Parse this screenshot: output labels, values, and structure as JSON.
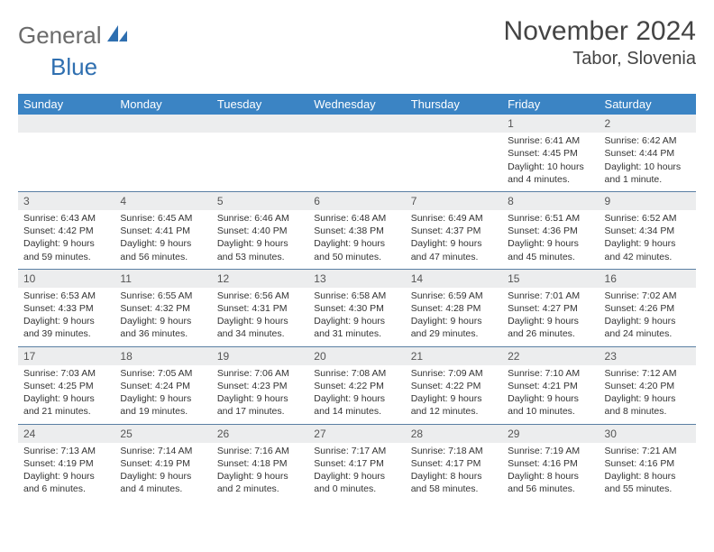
{
  "logo": {
    "part1": "General",
    "part2": "Blue"
  },
  "title": "November 2024",
  "location": "Tabor, Slovenia",
  "day_headers": [
    "Sunday",
    "Monday",
    "Tuesday",
    "Wednesday",
    "Thursday",
    "Friday",
    "Saturday"
  ],
  "colors": {
    "header_bg": "#3b84c4",
    "header_fg": "#ffffff",
    "daynum_bg": "#ecedee",
    "rule": "#5a7fa3",
    "logo_gray": "#6b6b6b",
    "logo_blue": "#2f6fb0"
  },
  "weeks": [
    [
      null,
      null,
      null,
      null,
      null,
      {
        "n": "1",
        "sunrise": "6:41 AM",
        "sunset": "4:45 PM",
        "daylight": "10 hours and 4 minutes."
      },
      {
        "n": "2",
        "sunrise": "6:42 AM",
        "sunset": "4:44 PM",
        "daylight": "10 hours and 1 minute."
      }
    ],
    [
      {
        "n": "3",
        "sunrise": "6:43 AM",
        "sunset": "4:42 PM",
        "daylight": "9 hours and 59 minutes."
      },
      {
        "n": "4",
        "sunrise": "6:45 AM",
        "sunset": "4:41 PM",
        "daylight": "9 hours and 56 minutes."
      },
      {
        "n": "5",
        "sunrise": "6:46 AM",
        "sunset": "4:40 PM",
        "daylight": "9 hours and 53 minutes."
      },
      {
        "n": "6",
        "sunrise": "6:48 AM",
        "sunset": "4:38 PM",
        "daylight": "9 hours and 50 minutes."
      },
      {
        "n": "7",
        "sunrise": "6:49 AM",
        "sunset": "4:37 PM",
        "daylight": "9 hours and 47 minutes."
      },
      {
        "n": "8",
        "sunrise": "6:51 AM",
        "sunset": "4:36 PM",
        "daylight": "9 hours and 45 minutes."
      },
      {
        "n": "9",
        "sunrise": "6:52 AM",
        "sunset": "4:34 PM",
        "daylight": "9 hours and 42 minutes."
      }
    ],
    [
      {
        "n": "10",
        "sunrise": "6:53 AM",
        "sunset": "4:33 PM",
        "daylight": "9 hours and 39 minutes."
      },
      {
        "n": "11",
        "sunrise": "6:55 AM",
        "sunset": "4:32 PM",
        "daylight": "9 hours and 36 minutes."
      },
      {
        "n": "12",
        "sunrise": "6:56 AM",
        "sunset": "4:31 PM",
        "daylight": "9 hours and 34 minutes."
      },
      {
        "n": "13",
        "sunrise": "6:58 AM",
        "sunset": "4:30 PM",
        "daylight": "9 hours and 31 minutes."
      },
      {
        "n": "14",
        "sunrise": "6:59 AM",
        "sunset": "4:28 PM",
        "daylight": "9 hours and 29 minutes."
      },
      {
        "n": "15",
        "sunrise": "7:01 AM",
        "sunset": "4:27 PM",
        "daylight": "9 hours and 26 minutes."
      },
      {
        "n": "16",
        "sunrise": "7:02 AM",
        "sunset": "4:26 PM",
        "daylight": "9 hours and 24 minutes."
      }
    ],
    [
      {
        "n": "17",
        "sunrise": "7:03 AM",
        "sunset": "4:25 PM",
        "daylight": "9 hours and 21 minutes."
      },
      {
        "n": "18",
        "sunrise": "7:05 AM",
        "sunset": "4:24 PM",
        "daylight": "9 hours and 19 minutes."
      },
      {
        "n": "19",
        "sunrise": "7:06 AM",
        "sunset": "4:23 PM",
        "daylight": "9 hours and 17 minutes."
      },
      {
        "n": "20",
        "sunrise": "7:08 AM",
        "sunset": "4:22 PM",
        "daylight": "9 hours and 14 minutes."
      },
      {
        "n": "21",
        "sunrise": "7:09 AM",
        "sunset": "4:22 PM",
        "daylight": "9 hours and 12 minutes."
      },
      {
        "n": "22",
        "sunrise": "7:10 AM",
        "sunset": "4:21 PM",
        "daylight": "9 hours and 10 minutes."
      },
      {
        "n": "23",
        "sunrise": "7:12 AM",
        "sunset": "4:20 PM",
        "daylight": "9 hours and 8 minutes."
      }
    ],
    [
      {
        "n": "24",
        "sunrise": "7:13 AM",
        "sunset": "4:19 PM",
        "daylight": "9 hours and 6 minutes."
      },
      {
        "n": "25",
        "sunrise": "7:14 AM",
        "sunset": "4:19 PM",
        "daylight": "9 hours and 4 minutes."
      },
      {
        "n": "26",
        "sunrise": "7:16 AM",
        "sunset": "4:18 PM",
        "daylight": "9 hours and 2 minutes."
      },
      {
        "n": "27",
        "sunrise": "7:17 AM",
        "sunset": "4:17 PM",
        "daylight": "9 hours and 0 minutes."
      },
      {
        "n": "28",
        "sunrise": "7:18 AM",
        "sunset": "4:17 PM",
        "daylight": "8 hours and 58 minutes."
      },
      {
        "n": "29",
        "sunrise": "7:19 AM",
        "sunset": "4:16 PM",
        "daylight": "8 hours and 56 minutes."
      },
      {
        "n": "30",
        "sunrise": "7:21 AM",
        "sunset": "4:16 PM",
        "daylight": "8 hours and 55 minutes."
      }
    ]
  ],
  "labels": {
    "sunrise": "Sunrise: ",
    "sunset": "Sunset: ",
    "daylight": "Daylight: "
  }
}
